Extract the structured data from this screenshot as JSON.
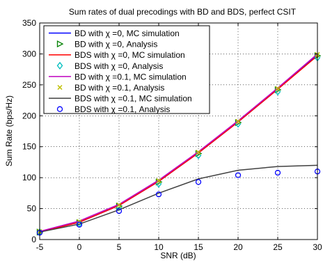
{
  "chart_data": {
    "type": "line",
    "title": "Sum rates of dual precodings with BD and BDS, perfect CSIT",
    "xlabel": "SNR (dB)",
    "ylabel": "Sum Rate (bps/Hz)",
    "xlim": [
      -5,
      30
    ],
    "ylim": [
      0,
      350
    ],
    "xticks": [
      -5,
      0,
      5,
      10,
      15,
      20,
      25,
      30
    ],
    "yticks": [
      0,
      50,
      100,
      150,
      200,
      250,
      300,
      350
    ],
    "x": [
      -5,
      0,
      5,
      10,
      15,
      20,
      25,
      30
    ],
    "grid": true,
    "legend_position": "top-left",
    "series": [
      {
        "name": "BD with χ =0, MC simulation",
        "style": "line",
        "color": "#0000ff",
        "values": [
          12,
          28,
          55,
          94,
          140,
          190,
          243,
          298
        ]
      },
      {
        "name": "BD with χ =0, Analysis",
        "style": "marker",
        "marker": "triangle-right",
        "color": "#008000",
        "values": [
          12,
          27,
          54,
          93,
          139,
          189,
          242,
          297
        ]
      },
      {
        "name": "BDS with χ =0, MC simulation",
        "style": "line",
        "color": "#ff0000",
        "values": [
          12,
          28,
          55,
          94,
          140,
          190,
          243,
          297
        ]
      },
      {
        "name": "BDS with χ =0, Analysis",
        "style": "marker",
        "marker": "diamond",
        "color": "#00bfbf",
        "values": [
          12,
          26,
          52,
          90,
          136,
          187,
          239,
          294
        ]
      },
      {
        "name": "BD with χ =0.1, MC simulation",
        "style": "line",
        "color": "#bf00bf",
        "values": [
          13,
          30,
          57,
          96,
          142,
          192,
          245,
          300
        ]
      },
      {
        "name": "BD with χ =0.1, Analysis",
        "style": "marker",
        "marker": "x",
        "color": "#bfbf00",
        "values": [
          13,
          29,
          56,
          95,
          141,
          191,
          244,
          299
        ]
      },
      {
        "name": "BDS with χ =0.1, MC simulation",
        "style": "line",
        "color": "#404040",
        "values": [
          12,
          25,
          48,
          75,
          98,
          112,
          118,
          120
        ]
      },
      {
        "name": "BDS with χ =0.1, Analysis",
        "style": "marker",
        "marker": "circle",
        "color": "#0000ff",
        "values": [
          11,
          24,
          46,
          73,
          93,
          104,
          108,
          110
        ]
      }
    ]
  }
}
